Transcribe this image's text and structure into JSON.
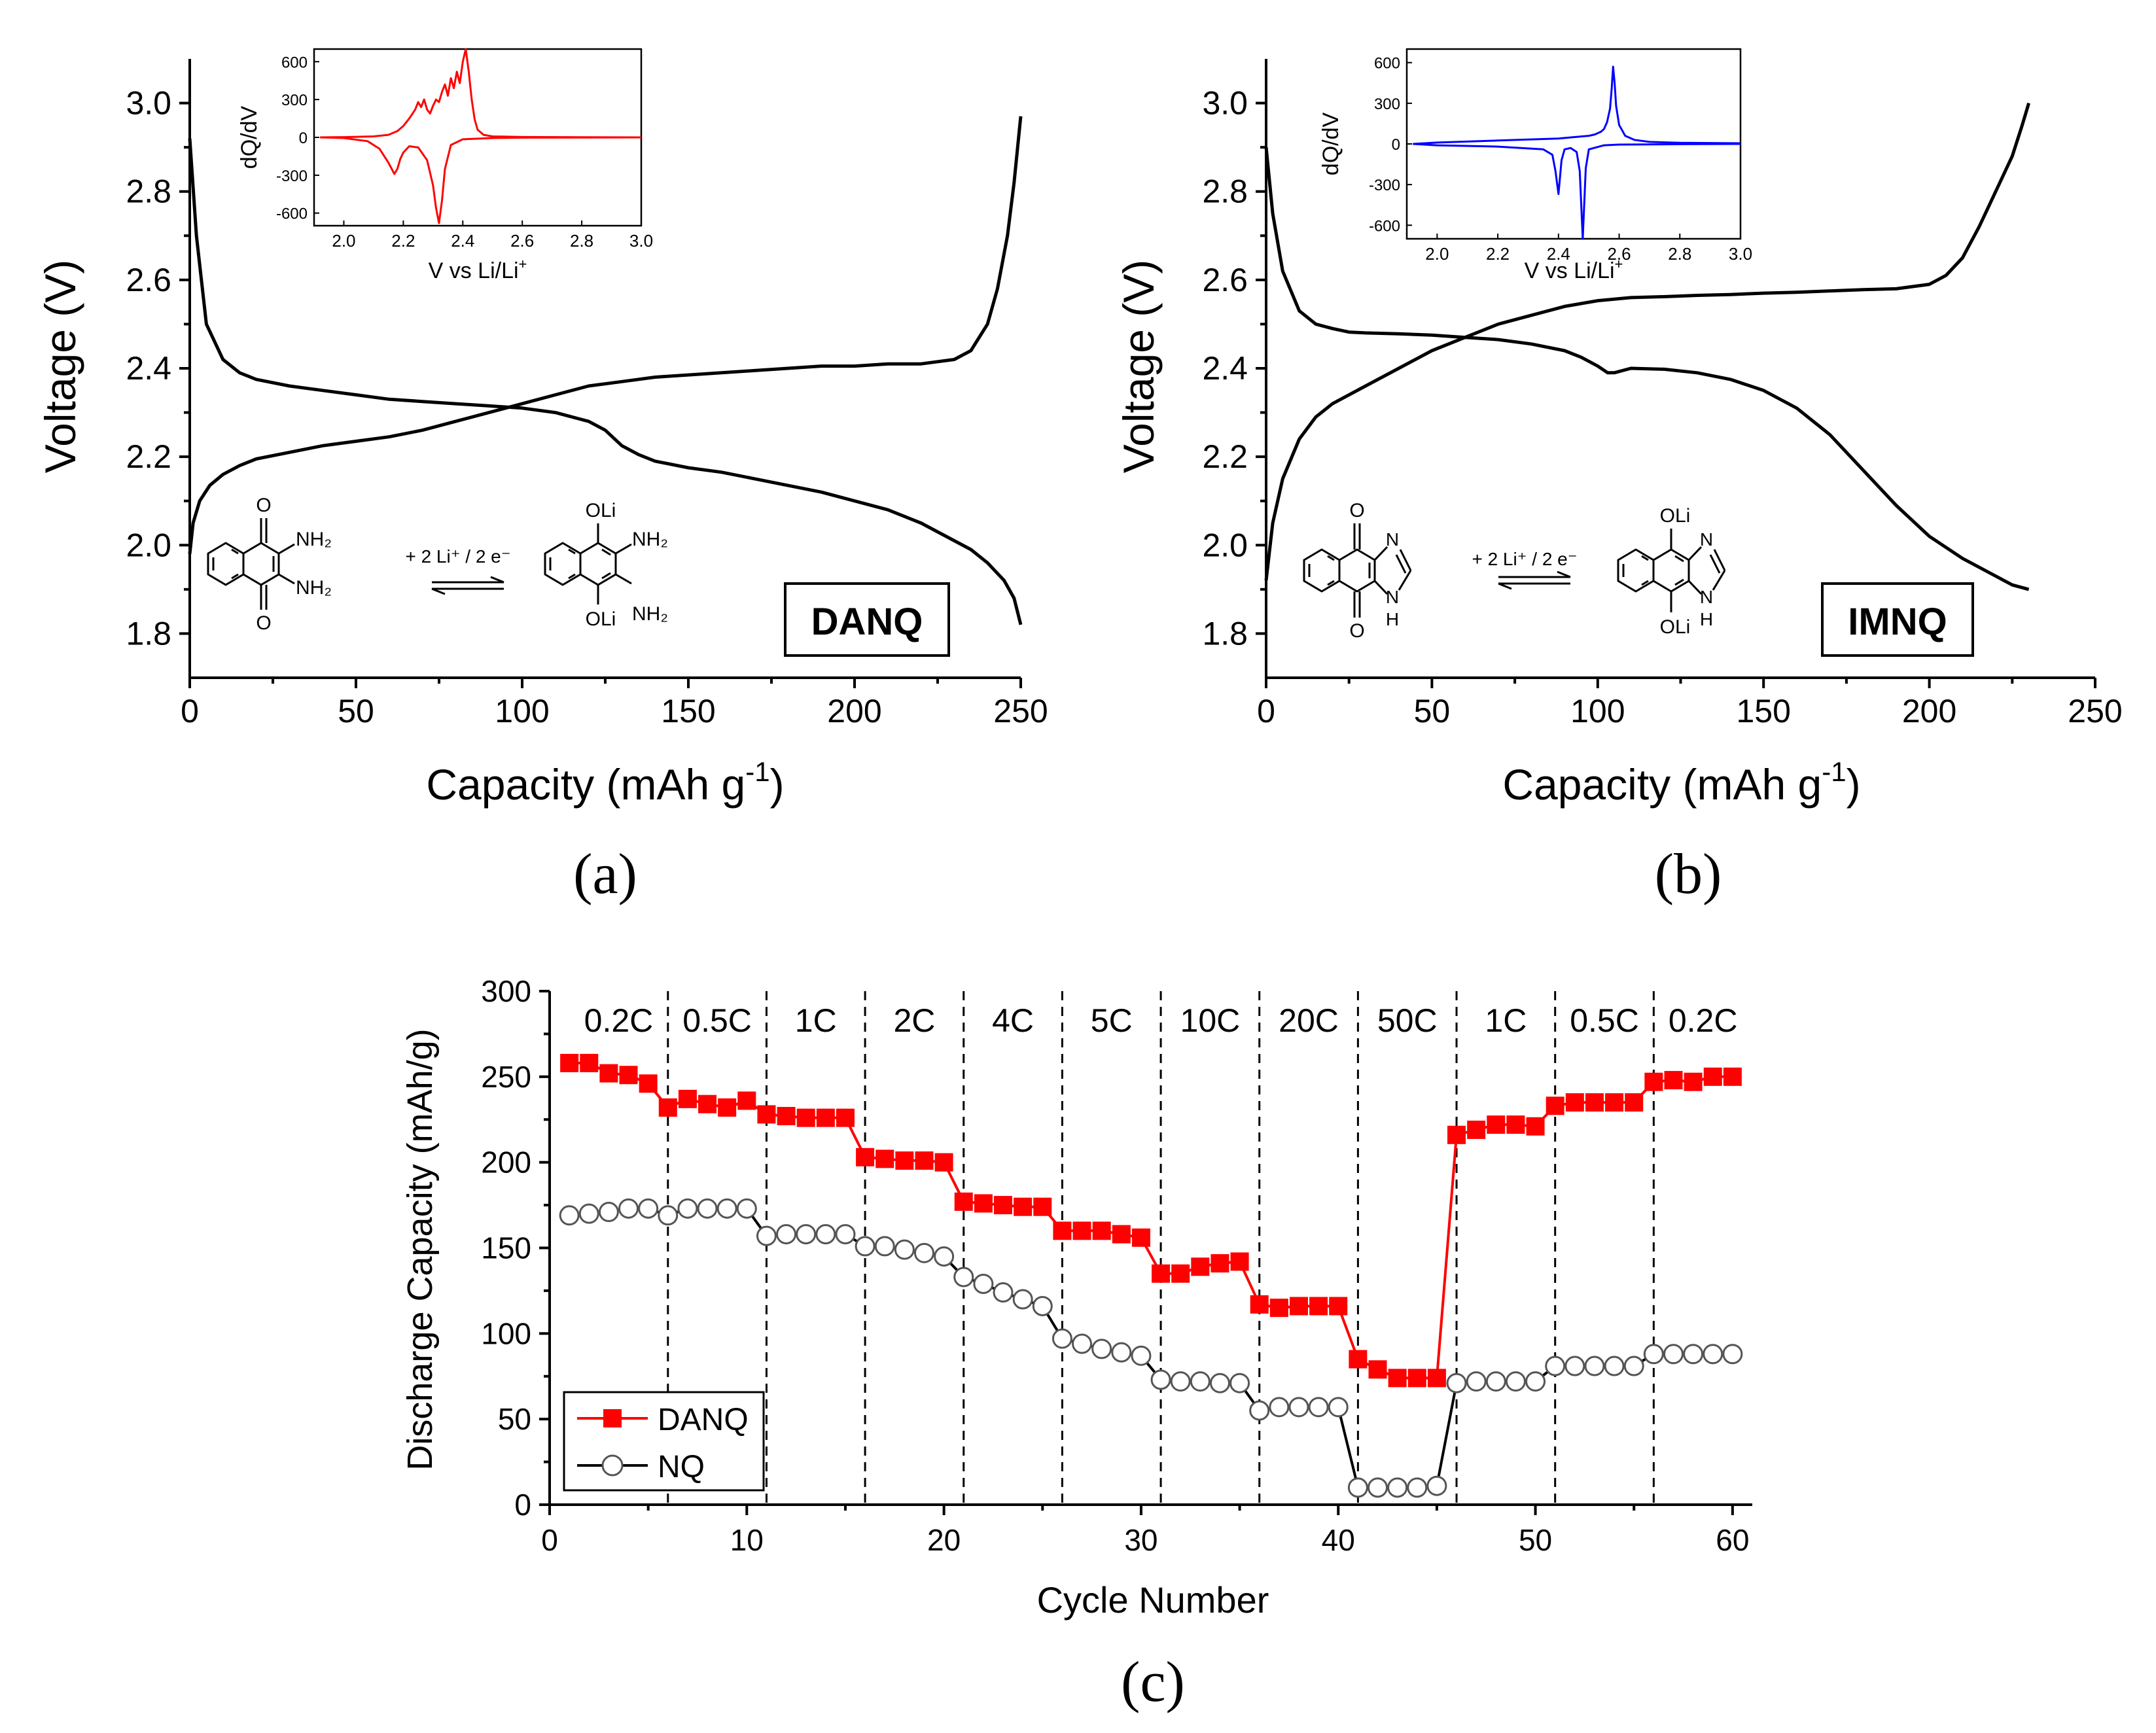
{
  "chart_data": [
    {
      "id": "a",
      "type": "line",
      "panel_label": "(a)",
      "xlabel": "Capacity (mAh g",
      "xlabel_sup": "-1",
      "xlabel_end": ")",
      "ylabel": "Voltage (V)",
      "xlim": [
        0,
        250
      ],
      "ylim": [
        1.7,
        3.1
      ],
      "x_ticks": [
        0,
        50,
        100,
        150,
        200,
        250
      ],
      "y_ticks": [
        1.8,
        2.0,
        2.2,
        2.4,
        2.6,
        2.8,
        3.0
      ],
      "compound_label": "DANQ",
      "reaction_label": "+ 2 Li⁺ / 2 e⁻",
      "chem_labels": {
        "o": "O",
        "nh2": "NH₂",
        "oli": "OLi"
      },
      "series": [
        {
          "name": "discharge",
          "color": "#000000",
          "x": [
            0,
            2,
            5,
            10,
            15,
            20,
            30,
            40,
            50,
            60,
            70,
            80,
            90,
            100,
            110,
            120,
            125,
            130,
            135,
            140,
            150,
            160,
            170,
            180,
            190,
            200,
            210,
            220,
            230,
            235,
            240,
            245,
            248,
            250
          ],
          "y": [
            2.92,
            2.7,
            2.5,
            2.42,
            2.39,
            2.375,
            2.36,
            2.35,
            2.34,
            2.33,
            2.325,
            2.32,
            2.315,
            2.31,
            2.3,
            2.28,
            2.26,
            2.225,
            2.205,
            2.19,
            2.175,
            2.165,
            2.15,
            2.135,
            2.12,
            2.1,
            2.08,
            2.05,
            2.01,
            1.99,
            1.96,
            1.92,
            1.88,
            1.82
          ]
        },
        {
          "name": "charge",
          "color": "#000000",
          "x": [
            0,
            1,
            3,
            6,
            10,
            15,
            20,
            30,
            40,
            50,
            60,
            70,
            80,
            90,
            100,
            110,
            120,
            130,
            140,
            150,
            160,
            170,
            180,
            190,
            200,
            210,
            220,
            230,
            235,
            240,
            243,
            246,
            248,
            250
          ],
          "y": [
            1.98,
            2.05,
            2.1,
            2.135,
            2.16,
            2.18,
            2.195,
            2.21,
            2.225,
            2.235,
            2.245,
            2.26,
            2.28,
            2.3,
            2.32,
            2.34,
            2.36,
            2.37,
            2.38,
            2.385,
            2.39,
            2.395,
            2.4,
            2.405,
            2.405,
            2.41,
            2.41,
            2.42,
            2.44,
            2.5,
            2.58,
            2.7,
            2.82,
            2.97
          ]
        }
      ],
      "inset": {
        "type": "line",
        "xlabel": "V vs Li/Li",
        "xlabel_sup": "+",
        "ylabel": "dQ/dV",
        "xlim": [
          1.9,
          3.0
        ],
        "ylim": [
          -700,
          700
        ],
        "x_ticks": [
          "2.0",
          "2.2",
          "2.4",
          "2.6",
          "2.8",
          "3.0"
        ],
        "y_ticks": [
          "600",
          "300",
          "0",
          "-300",
          "-600"
        ],
        "color": "#ff0000",
        "charge_curve": {
          "x": [
            1.92,
            2.0,
            2.1,
            2.15,
            2.18,
            2.2,
            2.22,
            2.24,
            2.25,
            2.26,
            2.27,
            2.28,
            2.29,
            2.3,
            2.31,
            2.32,
            2.33,
            2.34,
            2.35,
            2.36,
            2.37,
            2.38,
            2.39,
            2.4,
            2.41,
            2.42,
            2.43,
            2.44,
            2.45,
            2.47,
            2.5,
            2.6,
            2.8,
            3.0
          ],
          "y": [
            0,
            2,
            8,
            20,
            50,
            90,
            150,
            220,
            280,
            240,
            300,
            220,
            190,
            250,
            300,
            280,
            360,
            420,
            330,
            470,
            390,
            520,
            430,
            600,
            700,
            520,
            300,
            140,
            60,
            20,
            8,
            3,
            1,
            0
          ]
        },
        "discharge_curve": {
          "x": [
            1.92,
            2.0,
            2.08,
            2.12,
            2.15,
            2.17,
            2.18,
            2.19,
            2.2,
            2.22,
            2.25,
            2.28,
            2.3,
            2.31,
            2.32,
            2.33,
            2.34,
            2.36,
            2.4,
            2.5,
            2.6,
            2.8,
            3.0
          ],
          "y": [
            0,
            -5,
            -30,
            -90,
            -200,
            -290,
            -250,
            -170,
            -120,
            -70,
            -80,
            -180,
            -380,
            -560,
            -680,
            -500,
            -250,
            -60,
            -15,
            -5,
            -2,
            -1,
            0
          ]
        }
      }
    },
    {
      "id": "b",
      "type": "line",
      "panel_label": "(b)",
      "xlabel": "Capacity (mAh g",
      "xlabel_sup": "-1",
      "xlabel_end": ")",
      "ylabel": "Voltage (V)",
      "xlim": [
        0,
        250
      ],
      "ylim": [
        1.7,
        3.1
      ],
      "x_ticks": [
        0,
        50,
        100,
        150,
        200,
        250
      ],
      "y_ticks": [
        1.8,
        2.0,
        2.2,
        2.4,
        2.6,
        2.8,
        3.0
      ],
      "compound_label": "IMNQ",
      "reaction_label": "+ 2 Li⁺ / 2 e⁻",
      "chem_labels": {
        "o": "O",
        "n": "N",
        "nh": "N",
        "h": "H",
        "oli": "OLi"
      },
      "series": [
        {
          "name": "discharge",
          "color": "#000000",
          "x": [
            0,
            2,
            5,
            10,
            15,
            20,
            25,
            30,
            40,
            50,
            60,
            70,
            80,
            90,
            95,
            100,
            103,
            105,
            110,
            120,
            130,
            140,
            150,
            160,
            170,
            180,
            190,
            200,
            210,
            220,
            225,
            230
          ],
          "y": [
            2.9,
            2.75,
            2.62,
            2.53,
            2.5,
            2.49,
            2.482,
            2.48,
            2.478,
            2.475,
            2.47,
            2.465,
            2.455,
            2.44,
            2.425,
            2.405,
            2.39,
            2.39,
            2.4,
            2.398,
            2.39,
            2.375,
            2.35,
            2.31,
            2.25,
            2.17,
            2.09,
            2.02,
            1.97,
            1.93,
            1.91,
            1.9
          ]
        },
        {
          "name": "charge",
          "color": "#000000",
          "x": [
            0,
            2,
            5,
            10,
            15,
            20,
            30,
            40,
            50,
            60,
            70,
            80,
            90,
            100,
            110,
            120,
            130,
            140,
            150,
            160,
            170,
            180,
            190,
            200,
            205,
            210,
            215,
            220,
            225,
            228,
            230
          ],
          "y": [
            1.92,
            2.05,
            2.15,
            2.24,
            2.29,
            2.32,
            2.36,
            2.4,
            2.44,
            2.47,
            2.5,
            2.52,
            2.54,
            2.553,
            2.56,
            2.562,
            2.565,
            2.567,
            2.57,
            2.572,
            2.575,
            2.578,
            2.58,
            2.59,
            2.61,
            2.65,
            2.72,
            2.8,
            2.88,
            2.95,
            3.0
          ]
        }
      ],
      "inset": {
        "type": "line",
        "xlabel": "V vs Li/Li",
        "xlabel_sup": "+",
        "ylabel": "dQ/dV",
        "xlim": [
          1.9,
          3.0
        ],
        "ylim": [
          -700,
          700
        ],
        "x_ticks": [
          "2.0",
          "2.2",
          "2.4",
          "2.6",
          "2.8",
          "3.0"
        ],
        "y_ticks": [
          "600",
          "300",
          "0",
          "-300",
          "-600"
        ],
        "color": "#0000ff",
        "charge_curve": {
          "x": [
            1.92,
            2.0,
            2.2,
            2.4,
            2.45,
            2.5,
            2.52,
            2.54,
            2.55,
            2.56,
            2.57,
            2.575,
            2.58,
            2.585,
            2.59,
            2.6,
            2.62,
            2.65,
            2.7,
            2.8,
            3.0
          ],
          "y": [
            0,
            10,
            25,
            40,
            50,
            60,
            70,
            90,
            110,
            160,
            260,
            400,
            570,
            450,
            280,
            140,
            60,
            30,
            15,
            8,
            5
          ]
        },
        "discharge_curve": {
          "x": [
            1.92,
            2.0,
            2.2,
            2.35,
            2.38,
            2.39,
            2.4,
            2.41,
            2.42,
            2.44,
            2.46,
            2.47,
            2.48,
            2.49,
            2.5,
            2.55,
            2.6,
            2.8,
            3.0
          ],
          "y": [
            0,
            -10,
            -20,
            -40,
            -80,
            -200,
            -370,
            -120,
            -40,
            -30,
            -60,
            -200,
            -700,
            -180,
            -40,
            -10,
            -5,
            -2,
            0
          ]
        }
      }
    },
    {
      "id": "c",
      "type": "scatter",
      "panel_label": "(c)",
      "xlabel": "Cycle Number",
      "ylabel": "Discharge Capacity (mAh/g)",
      "xlim": [
        0,
        61
      ],
      "ylim": [
        0,
        300
      ],
      "x_ticks": [
        0,
        10,
        20,
        30,
        40,
        50,
        60
      ],
      "y_ticks": [
        0,
        50,
        100,
        150,
        200,
        250,
        300
      ],
      "rate_dividers": [
        6,
        11,
        16,
        21,
        26,
        31,
        36,
        41,
        46,
        51,
        56
      ],
      "rate_labels": [
        {
          "label": "0.2C",
          "x": 3.5
        },
        {
          "label": "0.5C",
          "x": 8.5
        },
        {
          "label": "1C",
          "x": 13.5
        },
        {
          "label": "2C",
          "x": 18.5
        },
        {
          "label": "4C",
          "x": 23.5
        },
        {
          "label": "5C",
          "x": 28.5
        },
        {
          "label": "10C",
          "x": 33.5
        },
        {
          "label": "20C",
          "x": 38.5
        },
        {
          "label": "50C",
          "x": 43.5
        },
        {
          "label": "1C",
          "x": 48.5
        },
        {
          "label": "0.5C",
          "x": 53.5
        },
        {
          "label": "0.2C",
          "x": 58.5
        }
      ],
      "x": [
        1,
        2,
        3,
        4,
        5,
        6,
        7,
        8,
        9,
        10,
        11,
        12,
        13,
        14,
        15,
        16,
        17,
        18,
        19,
        20,
        21,
        22,
        23,
        24,
        25,
        26,
        27,
        28,
        29,
        30,
        31,
        32,
        33,
        34,
        35,
        36,
        37,
        38,
        39,
        40,
        41,
        42,
        43,
        44,
        45,
        46,
        47,
        48,
        49,
        50,
        51,
        52,
        53,
        54,
        55,
        56,
        57,
        58,
        59,
        60
      ],
      "series": [
        {
          "name": "DANQ",
          "color": "#ff0000",
          "marker": "square",
          "values": [
            258,
            258,
            252,
            251,
            246,
            232,
            237,
            234,
            232,
            236,
            228,
            227,
            226,
            226,
            226,
            203,
            202,
            201,
            201,
            200,
            177,
            176,
            175,
            174,
            174,
            160,
            160,
            160,
            158,
            156,
            135,
            135,
            139,
            141,
            142,
            117,
            115,
            116,
            116,
            116,
            85,
            79,
            74,
            74,
            74,
            216,
            219,
            222,
            222,
            221,
            233,
            235,
            235,
            235,
            235,
            247,
            248,
            247,
            250,
            250
          ]
        },
        {
          "name": "NQ",
          "color": "#000000",
          "marker": "circle",
          "values": [
            169,
            170,
            171,
            173,
            173,
            169,
            173,
            173,
            173,
            173,
            157,
            158,
            158,
            158,
            158,
            151,
            151,
            149,
            147,
            145,
            133,
            129,
            124,
            120,
            116,
            97,
            94,
            91,
            89,
            87,
            73,
            72,
            72,
            71,
            71,
            55,
            57,
            57,
            57,
            57,
            10,
            10,
            10,
            10,
            11,
            71,
            72,
            72,
            72,
            72,
            81,
            81,
            81,
            81,
            81,
            88,
            88,
            88,
            88,
            88
          ]
        }
      ],
      "legend": {
        "position": "bottom-left",
        "entries": [
          "DANQ",
          "NQ"
        ]
      }
    }
  ]
}
